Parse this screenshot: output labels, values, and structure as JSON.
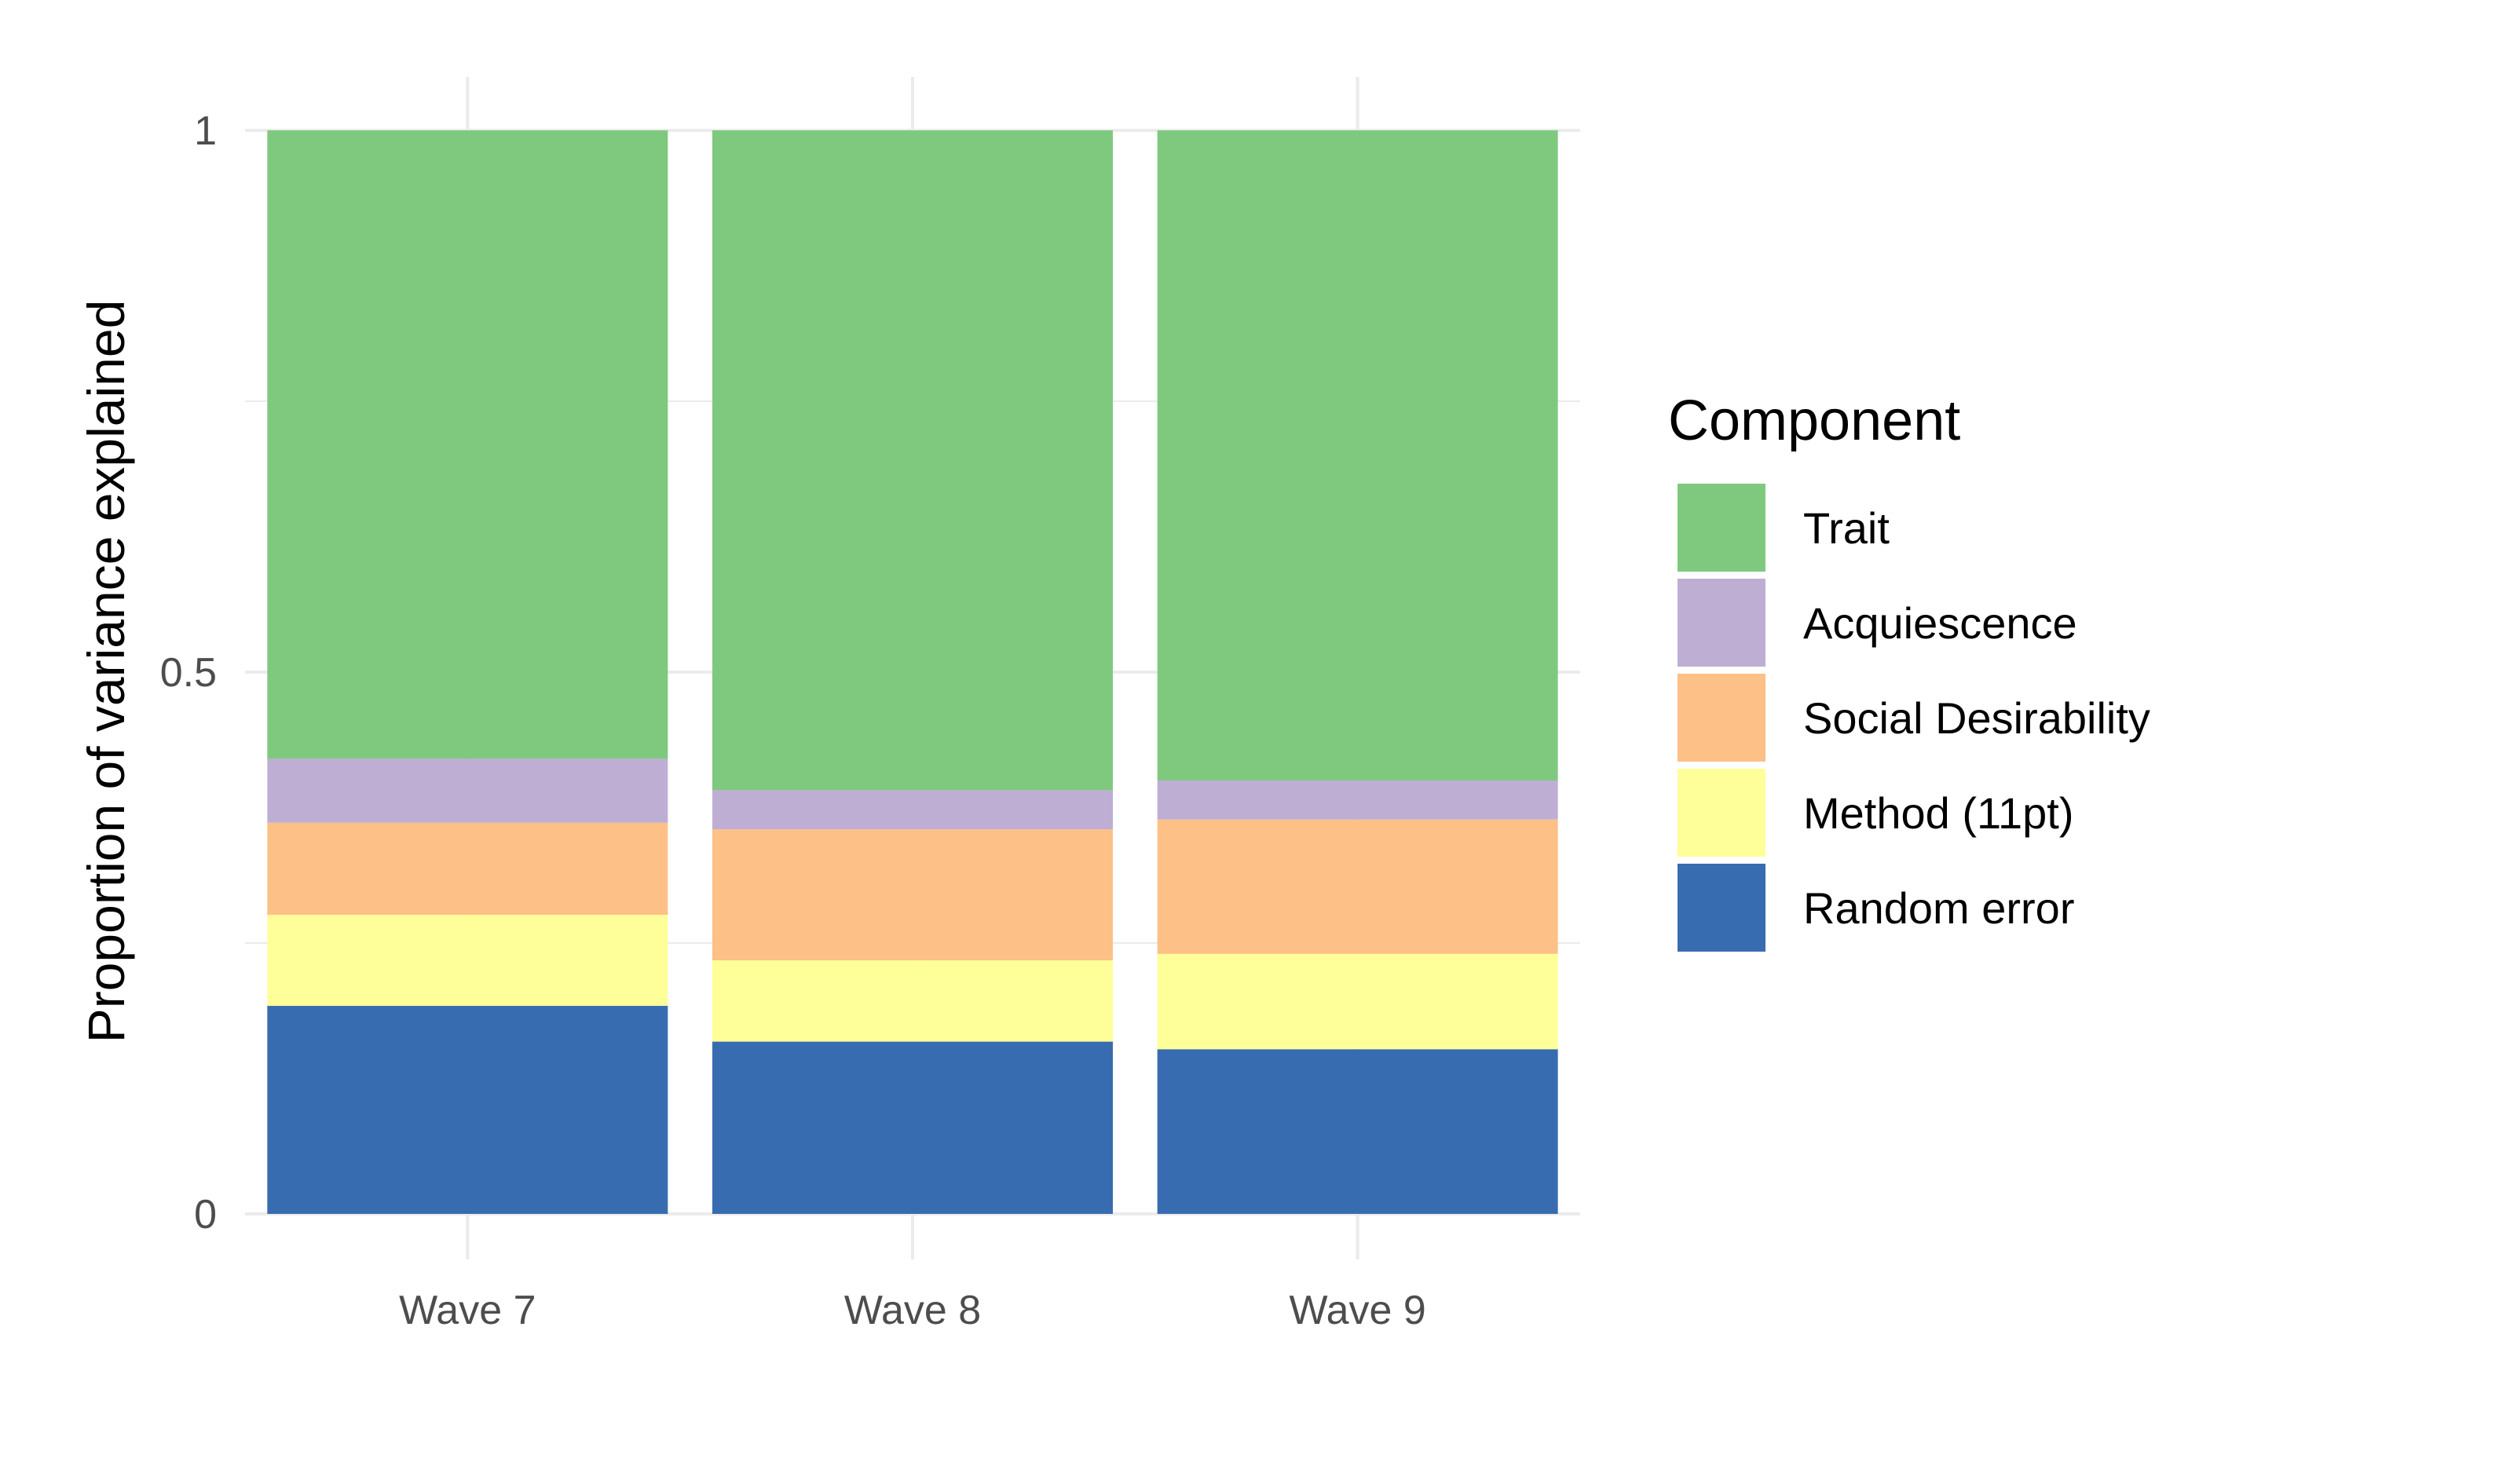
{
  "chart_data": {
    "type": "bar",
    "stacked": true,
    "ylabel": "Proportion of variance explained",
    "xlabel": "",
    "ylim": [
      0,
      1
    ],
    "y_ticks": [
      0,
      0.5,
      1
    ],
    "y_tick_labels": [
      "0",
      "0.5",
      "1"
    ],
    "categories": [
      "Wave 7",
      "Wave 8",
      "Wave 9"
    ],
    "grid": true,
    "legend": {
      "title": "Component",
      "placement": "right"
    },
    "series": [
      {
        "name": "Random error",
        "color": "#386CB0",
        "values": [
          0.192,
          0.159,
          0.152
        ]
      },
      {
        "name": "Method (11pt)",
        "color": "#FFFF99",
        "values": [
          0.084,
          0.075,
          0.088
        ]
      },
      {
        "name": "Social Desirability",
        "color": "#FDC086",
        "values": [
          0.085,
          0.121,
          0.124
        ]
      },
      {
        "name": "Acquiescence",
        "color": "#BEAED4",
        "values": [
          0.059,
          0.036,
          0.036
        ]
      },
      {
        "name": "Trait",
        "color": "#7FC97F",
        "values": [
          0.58,
          0.609,
          0.6
        ]
      }
    ]
  }
}
